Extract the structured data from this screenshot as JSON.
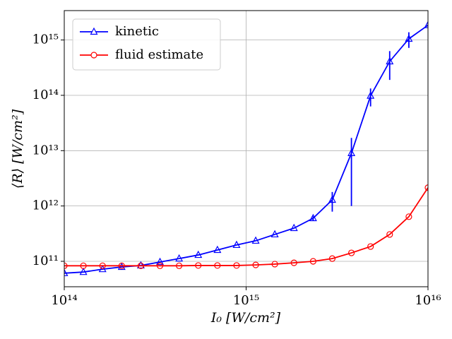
{
  "chart_data": {
    "type": "line",
    "xlabel": "I₀ [W/cm²]",
    "ylabel": "⟨R⟩ [W/cm²]",
    "xscale": "log",
    "yscale": "log",
    "grid": true,
    "legend": "upper left",
    "x": [
      100000000000000.0,
      127400000000000.0,
      162400000000000.0,
      206900000000000.0,
      263700000000000.0,
      336000000000000.0,
      428100000000000.0,
      545600000000000.0,
      695200000000000.0,
      885900000000000.0,
      1129000000000000.0,
      1438000000000000.0,
      1833000000000000.0,
      2336000000000000.0,
      2976000000000000.0,
      3793000000000000.0,
      4833000000000000.0,
      6158000000000000.0,
      7848000000000000.0,
      1e+16
    ],
    "series": [
      {
        "name": "kinetic",
        "color": "#0000ff",
        "marker": "triangle",
        "values": [
          61000000000.0,
          64000000000.0,
          72000000000.0,
          79000000000.0,
          84000000000.0,
          97000000000.0,
          112000000000.0,
          130000000000.0,
          160000000000.0,
          197000000000.0,
          235000000000.0,
          306000000000.0,
          398000000000.0,
          600000000000.0,
          1290000000000.0,
          9000000000000.0,
          98000000000000.0,
          410000000000000.0,
          1050000000000000.0,
          1850000000000000.0
        ],
        "errors": [
          null,
          null,
          null,
          null,
          null,
          null,
          null,
          null,
          null,
          null,
          null,
          null,
          null,
          50000000000.0,
          500000000000.0,
          8000000000000.0,
          35000000000000.0,
          220000000000000.0,
          330000000000000.0,
          null
        ]
      },
      {
        "name": "fluid estimate",
        "color": "#ff0000",
        "marker": "circle",
        "values": [
          83000000000.0,
          83000000000.0,
          83000000000.0,
          83000000000.0,
          83000000000.0,
          83000000000.0,
          83000000000.0,
          84000000000.0,
          84000000000.0,
          84000000000.0,
          86000000000.0,
          89000000000.0,
          94000000000.0,
          100000000000.0,
          112000000000.0,
          142000000000.0,
          185000000000.0,
          306000000000.0,
          640000000000.0,
          2140000000000.0
        ]
      }
    ],
    "xlim": [
      100000000000000.0,
      1e+16
    ],
    "ylim": [
      34700000000.0,
      3400000000000000.0
    ],
    "xticks": [
      {
        "value": 100000000000000.0,
        "label": "10¹⁴"
      },
      {
        "value": 1000000000000000.0,
        "label": "10¹⁵"
      },
      {
        "value": 1e+16,
        "label": "10¹⁶"
      }
    ],
    "yticks": [
      {
        "value": 100000000000.0,
        "label": "10¹¹"
      },
      {
        "value": 1000000000000.0,
        "label": "10¹²"
      },
      {
        "value": 10000000000000.0,
        "label": "10¹³"
      },
      {
        "value": 100000000000000.0,
        "label": "10¹⁴"
      },
      {
        "value": 1000000000000000.0,
        "label": "10¹⁵"
      }
    ]
  }
}
